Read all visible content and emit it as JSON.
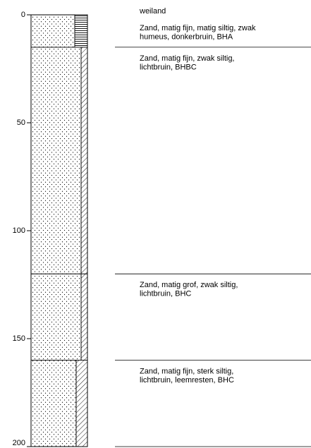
{
  "land_use": "weiland",
  "depth_axis": {
    "range": [
      0,
      200
    ],
    "ticks": [
      0,
      50,
      100,
      150,
      200
    ]
  },
  "layers": [
    {
      "top": 0,
      "bottom": 15,
      "description": [
        "Zand, matig fijn, matig siltig, zwak",
        "humeus, donkerbruin, BHA"
      ]
    },
    {
      "top": 15,
      "bottom": 120,
      "description": [
        "Zand, matig fijn, zwak siltig,",
        "lichtbruin, BHBC"
      ]
    },
    {
      "top": 120,
      "bottom": 160,
      "description": [
        "Zand, matig grof, zwak siltig,",
        "lichtbruin, BHC"
      ]
    },
    {
      "top": 160,
      "bottom": 200,
      "description": [
        "Zand, matig fijn, sterk siltig,",
        "lichtbruin, leemresten, BHC"
      ]
    }
  ]
}
